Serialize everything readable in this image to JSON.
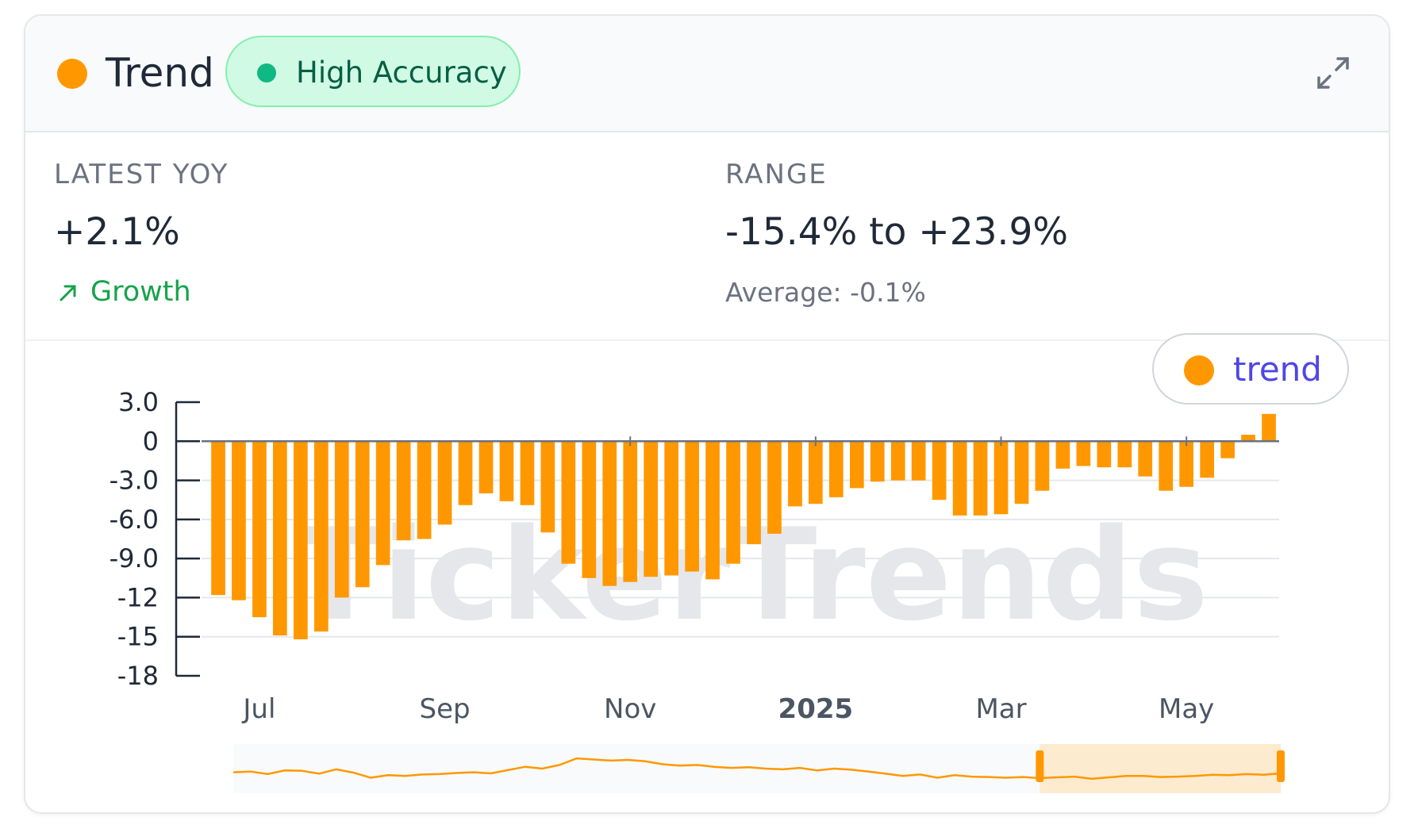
{
  "header": {
    "title": "Trend",
    "badge": "High Accuracy",
    "colors": {
      "title_dot": "#ff9800",
      "badge_dot": "#10b981",
      "badge_bg": "#d1fae5"
    },
    "expand_icon": "expand-icon"
  },
  "stats": {
    "latest_yoy": {
      "label": "LATEST YOY",
      "value": "+2.1%",
      "trend": "Growth",
      "trend_icon": "arrow-up-right-icon"
    },
    "range": {
      "label": "RANGE",
      "value": "-15.4% to +23.9%",
      "average": "Average: -0.1%"
    }
  },
  "legend": {
    "label": "trend",
    "color": "#ff9800"
  },
  "watermark": "TickerTrends",
  "chart_data": {
    "type": "bar",
    "ylim": [
      -18,
      3
    ],
    "yticks": [
      "3.0",
      "0",
      "-3.0",
      "-6.0",
      "-9.0",
      "-12",
      "-15",
      "-18"
    ],
    "ytick_values": [
      3,
      0,
      -3,
      -6,
      -9,
      -12,
      -15,
      -18
    ],
    "xticks": [
      {
        "label": "Jul",
        "index": 2.5,
        "bold": false
      },
      {
        "label": "Sep",
        "index": 11.5,
        "bold": false
      },
      {
        "label": "Nov",
        "index": 20.5,
        "bold": false
      },
      {
        "label": "2025",
        "index": 29.5,
        "bold": true
      },
      {
        "label": "Mar",
        "index": 38.5,
        "bold": false
      },
      {
        "label": "May",
        "index": 47.5,
        "bold": false
      }
    ],
    "series": [
      {
        "color": "#ff9800",
        "values": [
          -11.8,
          -12.2,
          -13.5,
          -14.9,
          -15.2,
          -14.6,
          -12.0,
          -11.2,
          -9.5,
          -7.6,
          -7.5,
          -6.4,
          -4.9,
          -4.0,
          -4.6,
          -4.9,
          -7.0,
          -9.4,
          -10.5,
          -11.1,
          -10.8,
          -10.4,
          -10.3,
          -10.0,
          -10.6,
          -9.4,
          -7.9,
          -7.1,
          -5.0,
          -4.8,
          -4.3,
          -3.6,
          -3.1,
          -3.0,
          -3.0,
          -4.5,
          -5.7,
          -5.7,
          -5.6,
          -4.8,
          -3.8,
          -2.1,
          -1.9,
          -2.0,
          -2.0,
          -2.7,
          -3.8,
          -3.5,
          -2.8,
          -1.3,
          0.5,
          2.1
        ]
      }
    ],
    "navigator": {
      "values": [
        0.4,
        0.42,
        0.35,
        0.45,
        0.44,
        0.36,
        0.48,
        0.39,
        0.25,
        0.32,
        0.3,
        0.34,
        0.35,
        0.38,
        0.4,
        0.37,
        0.46,
        0.55,
        0.5,
        0.6,
        0.78,
        0.75,
        0.72,
        0.74,
        0.7,
        0.62,
        0.58,
        0.6,
        0.55,
        0.52,
        0.54,
        0.5,
        0.48,
        0.52,
        0.45,
        0.5,
        0.47,
        0.42,
        0.36,
        0.3,
        0.34,
        0.25,
        0.32,
        0.28,
        0.27,
        0.25,
        0.27,
        0.24,
        0.26,
        0.28,
        0.22,
        0.26,
        0.3,
        0.3,
        0.27,
        0.28,
        0.3,
        0.33,
        0.32,
        0.35,
        0.33,
        0.37
      ],
      "selected_from": 0.77,
      "selected_to": 1.0
    }
  }
}
